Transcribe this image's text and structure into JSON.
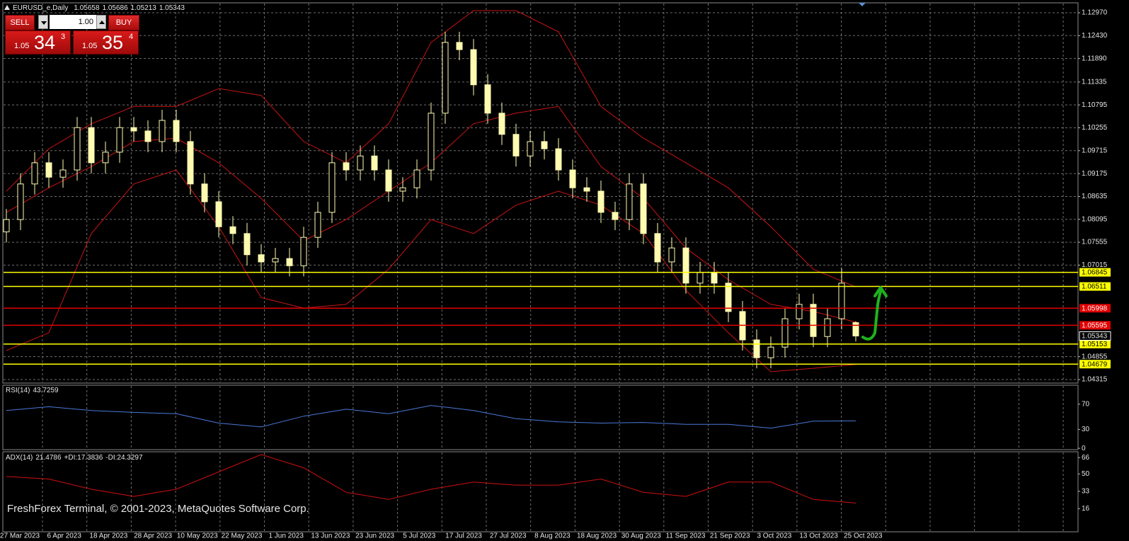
{
  "chart_data": [
    {
      "type": "candlestick",
      "title": "EURUSD_e,Daily",
      "color": "#fffbb0",
      "grid": true,
      "ylim": [
        1.04248,
        1.13187
      ],
      "yticks": [
        {
          "value": 1.1297,
          "label": "1.12970"
        },
        {
          "value": 1.1243,
          "label": "1.12430"
        },
        {
          "value": 1.1189,
          "label": "1.11890"
        },
        1.11335,
        1.10795,
        1.10255,
        1.09715,
        1.09175,
        1.08635,
        1.08095,
        1.07555,
        1.07015,
        1.04855,
        1.04315
      ],
      "candles": {
        "open": [
          1.078,
          1.0809,
          1.0893,
          1.0943,
          1.0909,
          1.0926,
          1.1026,
          1.0943,
          1.0968,
          1.1026,
          1.1018,
          1.0993,
          1.1043,
          1.0993,
          1.0893,
          1.0851,
          1.0792,
          1.0776,
          1.0726,
          1.0709,
          1.0717,
          1.07,
          1.0767,
          1.0826,
          1.0943,
          1.0926,
          1.0959,
          1.0926,
          1.0876,
          1.0884,
          1.0926,
          1.106,
          1.1227,
          1.121,
          1.1127,
          1.106,
          1.101,
          1.0959,
          1.0993,
          1.0976,
          1.0926,
          1.0884,
          1.0876,
          1.0826,
          1.0809,
          1.0893,
          1.0776,
          1.0709,
          1.0742,
          1.0659,
          1.0684,
          1.0659,
          1.0592,
          1.0525,
          1.0483,
          1.0508,
          1.0575,
          1.0609,
          1.0533,
          1.0575,
          1.05658
        ],
        "high": [
          1.0834,
          1.0918,
          1.0968,
          1.0968,
          1.0951,
          1.1051,
          1.1051,
          1.0993,
          1.1051,
          1.1051,
          1.1043,
          1.1068,
          1.1068,
          1.1018,
          1.0918,
          1.0876,
          1.0817,
          1.0801,
          1.0751,
          1.0742,
          1.0742,
          1.0792,
          1.0851,
          1.0968,
          1.0968,
          1.0984,
          1.0984,
          1.0951,
          1.0909,
          1.0951,
          1.1085,
          1.1252,
          1.1252,
          1.1235,
          1.1152,
          1.1085,
          1.1035,
          1.1018,
          1.1018,
          1.1001,
          1.0951,
          1.0909,
          1.0901,
          1.0851,
          1.0918,
          1.0918,
          1.0801,
          1.0767,
          1.0767,
          1.0709,
          1.0709,
          1.0684,
          1.0617,
          1.055,
          1.0533,
          1.06,
          1.0634,
          1.0634,
          1.06,
          1.0694,
          1.05686
        ],
        "low": [
          1.0755,
          1.0784,
          1.0868,
          1.0884,
          1.0884,
          1.0901,
          1.0918,
          1.0918,
          1.0943,
          1.0993,
          1.0968,
          1.0968,
          1.0968,
          1.0868,
          1.0826,
          1.0767,
          1.0751,
          1.0701,
          1.0684,
          1.0684,
          1.0675,
          1.0675,
          1.0742,
          1.0801,
          1.0901,
          1.0901,
          1.0901,
          1.0851,
          1.0851,
          1.0859,
          1.0901,
          1.1035,
          1.1185,
          1.1102,
          1.1035,
          1.0985,
          1.0934,
          1.0934,
          1.0951,
          1.0901,
          1.0859,
          1.0851,
          1.0801,
          1.0784,
          1.0784,
          1.0751,
          1.0684,
          1.0684,
          1.0634,
          1.0634,
          1.0634,
          1.0567,
          1.05,
          1.0458,
          1.0458,
          1.0483,
          1.055,
          1.0508,
          1.0508,
          1.055,
          1.05213
        ],
        "close": [
          1.0809,
          1.0893,
          1.0943,
          1.0909,
          1.0926,
          1.1026,
          1.0943,
          1.0968,
          1.1026,
          1.1018,
          1.0993,
          1.1043,
          1.0993,
          1.0893,
          1.0851,
          1.0792,
          1.0776,
          1.0726,
          1.0709,
          1.0717,
          1.07,
          1.0767,
          1.0826,
          1.0943,
          1.0926,
          1.0959,
          1.0926,
          1.0876,
          1.0884,
          1.0926,
          1.106,
          1.1227,
          1.121,
          1.1127,
          1.106,
          1.101,
          1.0959,
          1.0993,
          1.0976,
          1.0926,
          1.0884,
          1.0876,
          1.0826,
          1.0809,
          1.0893,
          1.0776,
          1.0709,
          1.0742,
          1.0659,
          1.0684,
          1.0659,
          1.0592,
          1.0525,
          1.0483,
          1.0508,
          1.0575,
          1.0609,
          1.0533,
          1.0575,
          1.0659,
          1.05343
        ]
      },
      "bands": [
        {
          "color": "#c81414",
          "values": [
            1.0876,
            1.0976,
            1.1035,
            1.1076,
            1.1076,
            1.1118,
            1.1102,
            1.0993,
            1.0943,
            1.1035,
            1.1227,
            1.1302,
            1.1302,
            1.1252,
            1.1076,
            1.1001,
            1.0943,
            1.0884,
            1.0792,
            1.0692,
            1.065
          ]
        },
        {
          "color": "#c81414",
          "values": [
            1.0826,
            1.0884,
            1.0934,
            1.0993,
            1.1001,
            1.0943,
            1.0859,
            1.0759,
            1.0809,
            1.0876,
            1.0943,
            1.1035,
            1.106,
            1.1076,
            1.0934,
            1.0859,
            1.0742,
            1.0667,
            1.0609,
            1.0592,
            1.0567
          ]
        },
        {
          "color": "#c81414",
          "values": [
            1.05,
            1.0542,
            1.0776,
            1.0893,
            1.0926,
            1.0792,
            1.0625,
            1.06,
            1.0609,
            1.0692,
            1.0809,
            1.0776,
            1.0843,
            1.0876,
            1.0843,
            1.0776,
            1.0642,
            1.0542,
            1.045,
            1.0458,
            1.0467
          ]
        }
      ],
      "levels": [
        {
          "value": 1.06845,
          "color": "#ffff00"
        },
        {
          "value": 1.06511,
          "color": "#ffff00"
        },
        {
          "value": 1.05998,
          "color": "#e00000"
        },
        {
          "value": 1.05595,
          "color": "#e00000"
        },
        {
          "value": 1.05153,
          "color": "#ffff00"
        },
        {
          "value": 1.04679,
          "color": "#ffff00"
        }
      ],
      "date_labels": [
        "27 Mar 2023",
        "6 Apr 2023",
        "18 Apr 2023",
        "28 Apr 2023",
        "10 May 2023",
        "22 May 2023",
        "1 Jun 2023",
        "13 Jun 2023",
        "23 Jun 2023",
        "5 Jul 2023",
        "17 Jul 2023",
        "27 Jul 2023",
        "8 Aug 2023",
        "18 Aug 2023",
        "30 Aug 2023",
        "11 Sep 2023",
        "21 Sep 2023",
        "3 Oct 2023",
        "13 Oct 2023",
        "25 Oct 2023"
      ]
    },
    {
      "type": "line",
      "title": "RSI(14)",
      "ylim": [
        -1,
        99
      ],
      "yticks": [
        70,
        30,
        0
      ],
      "grid": false,
      "series": [
        {
          "color": "#4a78d8",
          "values": [
            60,
            66,
            60,
            57,
            55,
            40,
            34,
            51,
            62,
            55,
            68,
            60,
            47,
            42,
            40,
            41,
            38,
            38,
            32,
            43,
            43.7259
          ]
        }
      ]
    },
    {
      "type": "line",
      "title": "ADX(14)",
      "ylim": [
        -6,
        71
      ],
      "yticks": [
        66,
        50,
        33,
        16
      ],
      "grid": false,
      "di_plus_label": "+DI:",
      "di_plus": 17.3836,
      "di_minus_label": "-DI:",
      "di_minus": 24.3297,
      "series": [
        {
          "color": "#d01010",
          "values": [
            47.5,
            45,
            35,
            28,
            35,
            52,
            69,
            56,
            32,
            25,
            35,
            42,
            39,
            39,
            45,
            32,
            28,
            42,
            42,
            25,
            21.4786
          ]
        }
      ]
    }
  ],
  "trade_panel": {
    "sell": "SELL",
    "buy": "BUY",
    "volume": "1.00",
    "bid": {
      "prefix": "1.05",
      "big": "34",
      "sup": "3"
    },
    "ask": {
      "prefix": "1.05",
      "big": "35",
      "sup": "4"
    }
  },
  "watermark": "FreshForex Terminal, © 2001-2023, MetaQuotes Software Corp."
}
